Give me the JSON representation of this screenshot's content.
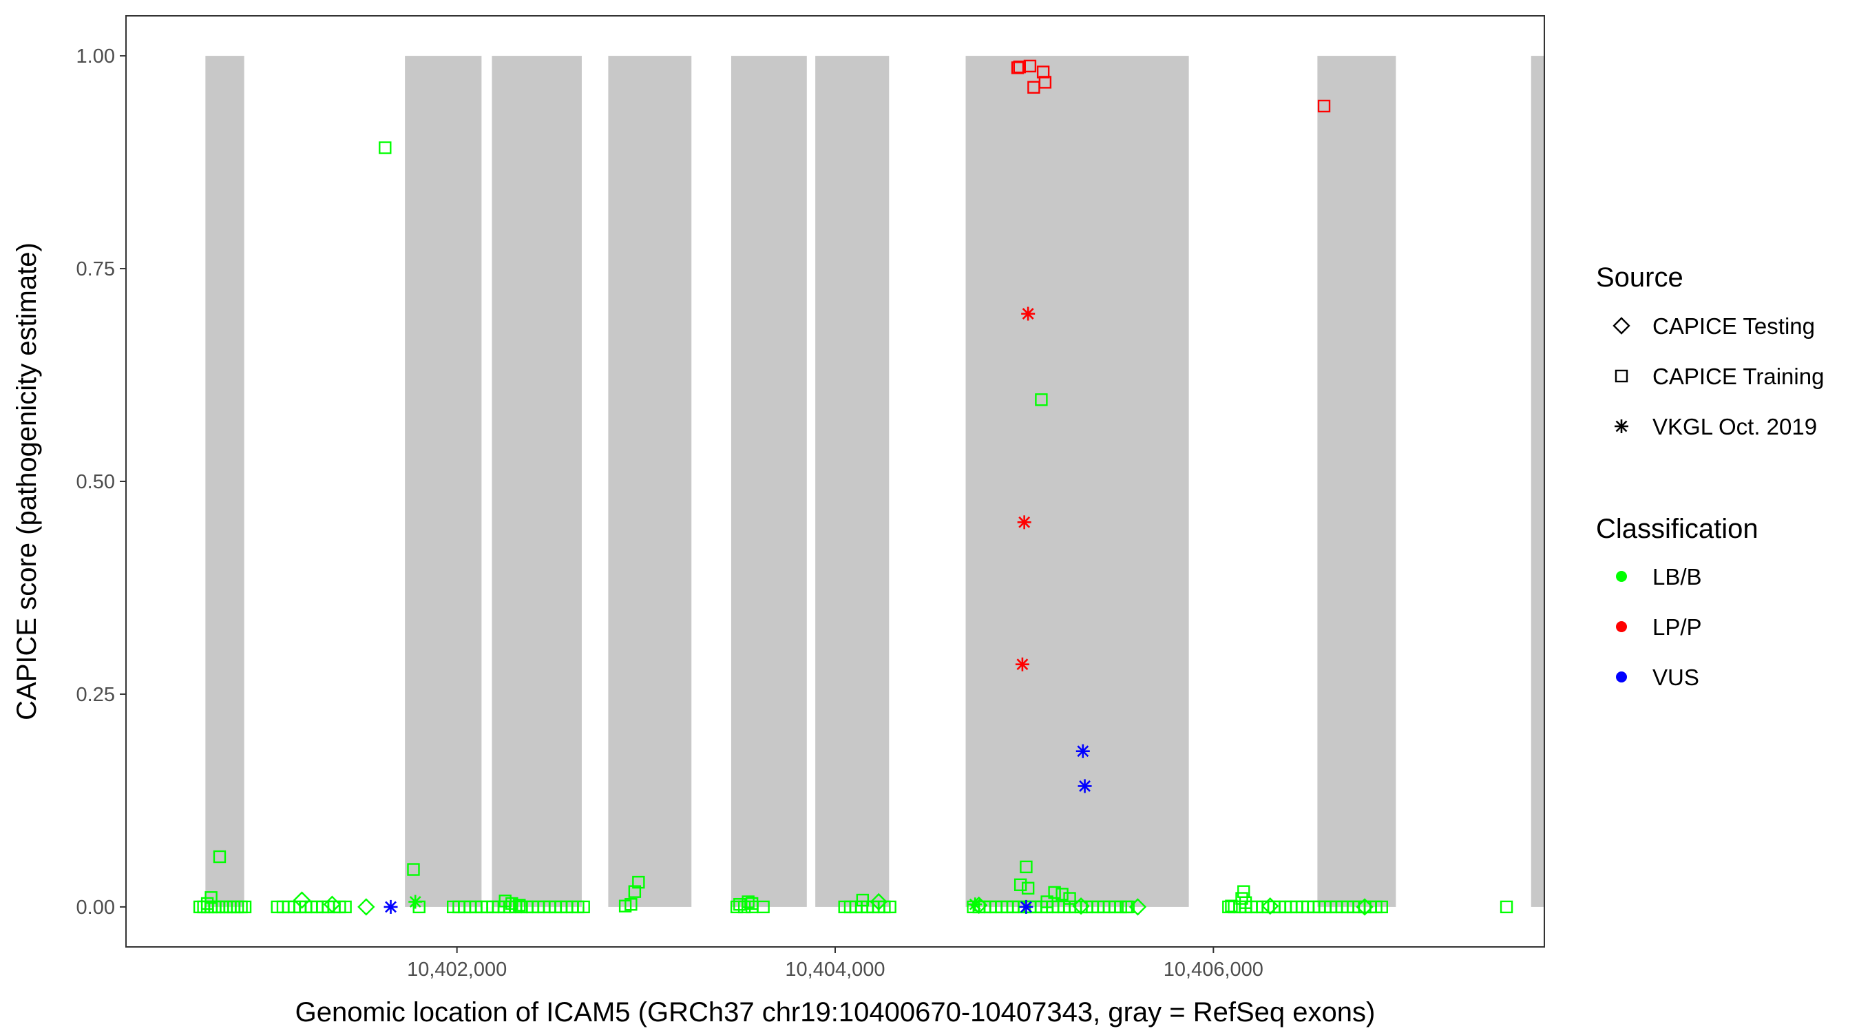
{
  "chart_data": {
    "type": "scatter",
    "title": "",
    "xlabel": "Genomic location of ICAM5 (GRCh37 chr19:10400670-10407343, gray = RefSeq exons)",
    "ylabel": "CAPICE score (pathogenicity estimate)",
    "xlim": [
      10400250,
      10407750
    ],
    "ylim": [
      -0.047,
      1.047
    ],
    "x_ticks": [
      {
        "value": 10402000,
        "label": "10,402,000"
      },
      {
        "value": 10404000,
        "label": "10,404,000"
      },
      {
        "value": 10406000,
        "label": "10,406,000"
      }
    ],
    "y_ticks": [
      {
        "value": 0,
        "label": "0.00"
      },
      {
        "value": 0.25,
        "label": "0.25"
      },
      {
        "value": 0.5,
        "label": "0.50"
      },
      {
        "value": 0.75,
        "label": "0.75"
      },
      {
        "value": 1.0,
        "label": "1.00"
      }
    ],
    "grid": false,
    "exons": [
      [
        10400670,
        10400875
      ],
      [
        10401725,
        10402130
      ],
      [
        10402185,
        10402660
      ],
      [
        10402800,
        10403240
      ],
      [
        10403450,
        10403850
      ],
      [
        10403895,
        10404285
      ],
      [
        10404690,
        10405870
      ],
      [
        10406550,
        10406965
      ],
      [
        10407680,
        10408100
      ]
    ],
    "legend": {
      "position": "right",
      "source_title": "Source",
      "source_items": [
        {
          "label": "CAPICE Testing",
          "shape": "diamond"
        },
        {
          "label": "CAPICE Training",
          "shape": "square"
        },
        {
          "label": "VKGL Oct. 2019",
          "shape": "asterisk"
        }
      ],
      "class_title": "Classification",
      "class_items": [
        {
          "label": "LB/B",
          "color": "#00ff00"
        },
        {
          "label": "LP/P",
          "color": "#ff0000"
        },
        {
          "label": "VUS",
          "color": "#0000ff"
        }
      ]
    },
    "series": [
      {
        "source": "CAPICE Training",
        "classification": "LB/B",
        "shape": "square",
        "color": "#00ff00",
        "points": [
          [
            10400745,
            0.059
          ],
          [
            10400700,
            0.011
          ],
          [
            10400680,
            0.004
          ],
          [
            10401620,
            0.892
          ],
          [
            10401770,
            0.044
          ],
          [
            10401800,
            0.0
          ],
          [
            10402960,
            0.029
          ],
          [
            10402940,
            0.018
          ],
          [
            10402920,
            0.003
          ],
          [
            10402890,
            0.001
          ],
          [
            10403560,
            0.004
          ],
          [
            10403495,
            0.003
          ],
          [
            10403540,
            0.006
          ],
          [
            10403620,
            0.0
          ],
          [
            10404145,
            0.008
          ],
          [
            10405010,
            0.047
          ],
          [
            10404980,
            0.026
          ],
          [
            10405020,
            0.022
          ],
          [
            10405090,
            0.596
          ],
          [
            10405160,
            0.017
          ],
          [
            10405200,
            0.015
          ],
          [
            10405240,
            0.01
          ],
          [
            10405120,
            0.006
          ],
          [
            10406160,
            0.018
          ],
          [
            10406150,
            0.01
          ],
          [
            10406170,
            0.005
          ],
          [
            10407550,
            0.0
          ],
          [
            10402255,
            0.007
          ],
          [
            10402290,
            0.004
          ],
          [
            10402330,
            0.002
          ],
          [
            10405550,
            0.0
          ],
          [
            10406095,
            0.001
          ],
          [
            10400640,
            0.0
          ],
          [
            10400660,
            0.0
          ],
          [
            10400680,
            0.0
          ],
          [
            10400700,
            0.0
          ],
          [
            10400720,
            0.0
          ],
          [
            10400740,
            0.0
          ],
          [
            10400760,
            0.0
          ],
          [
            10400780,
            0.0
          ],
          [
            10400800,
            0.0
          ],
          [
            10400820,
            0.0
          ],
          [
            10400840,
            0.0
          ],
          [
            10400860,
            0.0
          ],
          [
            10400880,
            0.0
          ],
          [
            10401050,
            0.0
          ],
          [
            10401080,
            0.0
          ],
          [
            10401110,
            0.0
          ],
          [
            10401140,
            0.0
          ],
          [
            10401170,
            0.0
          ],
          [
            10401200,
            0.0
          ],
          [
            10401230,
            0.0
          ],
          [
            10401260,
            0.0
          ],
          [
            10401290,
            0.0
          ],
          [
            10401320,
            0.0
          ],
          [
            10401350,
            0.0
          ],
          [
            10401380,
            0.0
          ],
          [
            10401410,
            0.0
          ],
          [
            10401980,
            0.0
          ],
          [
            10402010,
            0.0
          ],
          [
            10402040,
            0.0
          ],
          [
            10402070,
            0.0
          ],
          [
            10402100,
            0.0
          ],
          [
            10402130,
            0.0
          ],
          [
            10402160,
            0.0
          ],
          [
            10402190,
            0.0
          ],
          [
            10402220,
            0.0
          ],
          [
            10402250,
            0.0
          ],
          [
            10402280,
            0.0
          ],
          [
            10402310,
            0.0
          ],
          [
            10402340,
            0.0
          ],
          [
            10402370,
            0.0
          ],
          [
            10402400,
            0.0
          ],
          [
            10402430,
            0.0
          ],
          [
            10402460,
            0.0
          ],
          [
            10402490,
            0.0
          ],
          [
            10402520,
            0.0
          ],
          [
            10402550,
            0.0
          ],
          [
            10402580,
            0.0
          ],
          [
            10402610,
            0.0
          ],
          [
            10402640,
            0.0
          ],
          [
            10402670,
            0.0
          ],
          [
            10403480,
            0.0
          ],
          [
            10403520,
            0.0
          ],
          [
            10403560,
            0.0
          ],
          [
            10404050,
            0.0
          ],
          [
            10404080,
            0.0
          ],
          [
            10404110,
            0.0
          ],
          [
            10404140,
            0.0
          ],
          [
            10404170,
            0.0
          ],
          [
            10404200,
            0.0
          ],
          [
            10404230,
            0.0
          ],
          [
            10404260,
            0.0
          ],
          [
            10404290,
            0.0
          ],
          [
            10404730,
            0.0
          ],
          [
            10404760,
            0.0
          ],
          [
            10404790,
            0.0
          ],
          [
            10404820,
            0.0
          ],
          [
            10404850,
            0.0
          ],
          [
            10404880,
            0.0
          ],
          [
            10404910,
            0.0
          ],
          [
            10404940,
            0.0
          ],
          [
            10404970,
            0.0
          ],
          [
            10405000,
            0.0
          ],
          [
            10405030,
            0.0
          ],
          [
            10405060,
            0.0
          ],
          [
            10405090,
            0.0
          ],
          [
            10405120,
            0.0
          ],
          [
            10405150,
            0.0
          ],
          [
            10405180,
            0.0
          ],
          [
            10405210,
            0.0
          ],
          [
            10405240,
            0.0
          ],
          [
            10405270,
            0.0
          ],
          [
            10405300,
            0.0
          ],
          [
            10405330,
            0.0
          ],
          [
            10405360,
            0.0
          ],
          [
            10405390,
            0.0
          ],
          [
            10405420,
            0.0
          ],
          [
            10405450,
            0.0
          ],
          [
            10405480,
            0.0
          ],
          [
            10405510,
            0.0
          ],
          [
            10405540,
            0.0
          ],
          [
            10406080,
            0.0
          ],
          [
            10406110,
            0.0
          ],
          [
            10406140,
            0.0
          ],
          [
            10406170,
            0.0
          ],
          [
            10406200,
            0.0
          ],
          [
            10406230,
            0.0
          ],
          [
            10406260,
            0.0
          ],
          [
            10406290,
            0.0
          ],
          [
            10406320,
            0.0
          ],
          [
            10406350,
            0.0
          ],
          [
            10406380,
            0.0
          ],
          [
            10406410,
            0.0
          ],
          [
            10406440,
            0.0
          ],
          [
            10406470,
            0.0
          ],
          [
            10406500,
            0.0
          ],
          [
            10406530,
            0.0
          ],
          [
            10406560,
            0.0
          ],
          [
            10406590,
            0.0
          ],
          [
            10406620,
            0.0
          ],
          [
            10406650,
            0.0
          ],
          [
            10406680,
            0.0
          ],
          [
            10406710,
            0.0
          ],
          [
            10406740,
            0.0
          ],
          [
            10406770,
            0.0
          ],
          [
            10406800,
            0.0
          ],
          [
            10406830,
            0.0
          ],
          [
            10406860,
            0.0
          ],
          [
            10406890,
            0.0
          ]
        ]
      },
      {
        "source": "CAPICE Training",
        "classification": "LP/P",
        "shape": "square",
        "color": "#ff0000",
        "points": [
          [
            10404965,
            0.986
          ],
          [
            10404975,
            0.987
          ],
          [
            10405030,
            0.988
          ],
          [
            10405100,
            0.981
          ],
          [
            10405110,
            0.969
          ],
          [
            10405050,
            0.963
          ],
          [
            10406585,
            0.941
          ]
        ]
      },
      {
        "source": "CAPICE Testing",
        "classification": "LB/B",
        "shape": "diamond",
        "color": "#00ff00",
        "points": [
          [
            10401180,
            0.008
          ],
          [
            10401340,
            0.003
          ],
          [
            10401520,
            0.0
          ],
          [
            10404230,
            0.006
          ],
          [
            10404760,
            0.002
          ],
          [
            10405300,
            0.001
          ],
          [
            10405600,
            0.0
          ],
          [
            10406300,
            0.001
          ],
          [
            10406800,
            0.0
          ]
        ]
      },
      {
        "source": "VKGL Oct. 2019",
        "classification": "LB/B",
        "shape": "asterisk",
        "color": "#00ff00",
        "points": [
          [
            10401780,
            0.006
          ],
          [
            10404740,
            0.003
          ]
        ]
      },
      {
        "source": "VKGL Oct. 2019",
        "classification": "LP/P",
        "shape": "asterisk",
        "color": "#ff0000",
        "points": [
          [
            10405020,
            0.697
          ],
          [
            10405000,
            0.452
          ],
          [
            10404990,
            0.285
          ]
        ]
      },
      {
        "source": "VKGL Oct. 2019",
        "classification": "VUS",
        "shape": "asterisk",
        "color": "#0000ff",
        "points": [
          [
            10401650,
            0.0
          ],
          [
            10405010,
            0.0
          ],
          [
            10405310,
            0.183
          ],
          [
            10405320,
            0.142
          ]
        ]
      }
    ]
  }
}
